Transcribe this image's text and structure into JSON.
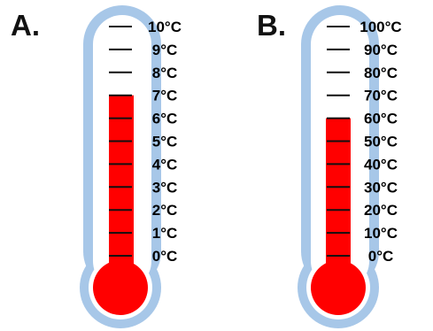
{
  "colors": {
    "outline": "#a7c7e8",
    "tube_inner": "#ffffff",
    "fluid": "#ff0000",
    "tick": "#111111",
    "text": "#000000"
  },
  "thermometers": [
    {
      "label": "A.",
      "reading": 7,
      "scale_min": 0,
      "scale_max": 10,
      "ticks": [
        {
          "value": 0,
          "label": "0°C"
        },
        {
          "value": 1,
          "label": "1°C"
        },
        {
          "value": 2,
          "label": "2°C"
        },
        {
          "value": 3,
          "label": "3°C"
        },
        {
          "value": 4,
          "label": "4°C"
        },
        {
          "value": 5,
          "label": "5°C"
        },
        {
          "value": 6,
          "label": "6°C"
        },
        {
          "value": 7,
          "label": "7°C"
        },
        {
          "value": 8,
          "label": "8°C"
        },
        {
          "value": 9,
          "label": "9°C"
        },
        {
          "value": 10,
          "label": "10°C"
        }
      ]
    },
    {
      "label": "B.",
      "reading": 60,
      "scale_min": 0,
      "scale_max": 100,
      "ticks": [
        {
          "value": 0,
          "label": "0°C"
        },
        {
          "value": 10,
          "label": "10°C"
        },
        {
          "value": 20,
          "label": "20°C"
        },
        {
          "value": 30,
          "label": "30°C"
        },
        {
          "value": 40,
          "label": "40°C"
        },
        {
          "value": 50,
          "label": "50°C"
        },
        {
          "value": 60,
          "label": "60°C"
        },
        {
          "value": 70,
          "label": "70°C"
        },
        {
          "value": 80,
          "label": "80°C"
        },
        {
          "value": 90,
          "label": "90°C"
        },
        {
          "value": 100,
          "label": "100°C"
        }
      ]
    }
  ]
}
